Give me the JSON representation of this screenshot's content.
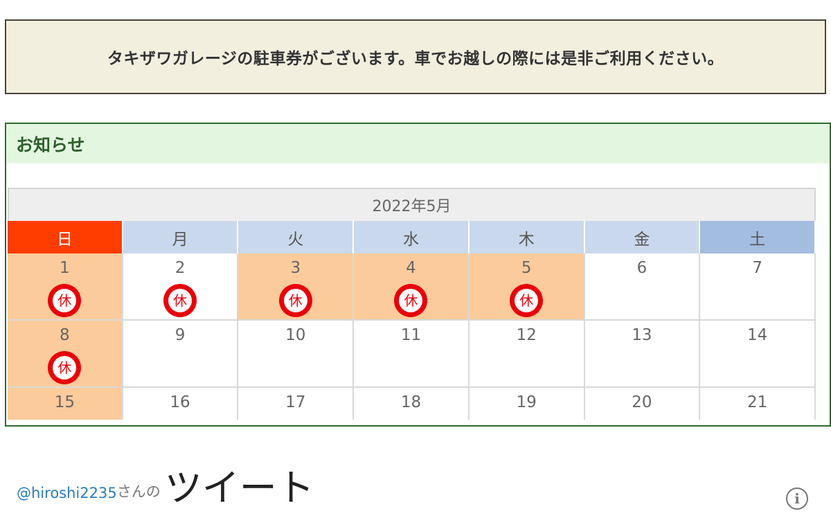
{
  "notice": {
    "text": "タキザワガレージの駐車券がございます。車でお越しの際には是非ご利用ください。"
  },
  "news": {
    "heading": "お知らせ",
    "calendar": {
      "title": "2022年5月",
      "weekdays": [
        "日",
        "月",
        "火",
        "水",
        "木",
        "金",
        "土"
      ],
      "closed_mark": "休",
      "weeks": [
        [
          {
            "day": "1",
            "holiday": true,
            "closed": true
          },
          {
            "day": "2",
            "holiday": false,
            "closed": true
          },
          {
            "day": "3",
            "holiday": true,
            "closed": true
          },
          {
            "day": "4",
            "holiday": true,
            "closed": true
          },
          {
            "day": "5",
            "holiday": true,
            "closed": true
          },
          {
            "day": "6",
            "holiday": false,
            "closed": false
          },
          {
            "day": "7",
            "holiday": false,
            "closed": false
          }
        ],
        [
          {
            "day": "8",
            "holiday": true,
            "closed": true
          },
          {
            "day": "9",
            "holiday": false,
            "closed": false
          },
          {
            "day": "10",
            "holiday": false,
            "closed": false
          },
          {
            "day": "11",
            "holiday": false,
            "closed": false
          },
          {
            "day": "12",
            "holiday": false,
            "closed": false
          },
          {
            "day": "13",
            "holiday": false,
            "closed": false
          },
          {
            "day": "14",
            "holiday": false,
            "closed": false
          }
        ],
        [
          {
            "day": "15",
            "holiday": true,
            "closed": false
          },
          {
            "day": "16",
            "holiday": false,
            "closed": false
          },
          {
            "day": "17",
            "holiday": false,
            "closed": false
          },
          {
            "day": "18",
            "holiday": false,
            "closed": false
          },
          {
            "day": "19",
            "holiday": false,
            "closed": false
          },
          {
            "day": "20",
            "holiday": false,
            "closed": false
          },
          {
            "day": "21",
            "holiday": false,
            "closed": false
          }
        ]
      ],
      "colors": {
        "sunday_header": "#ff3d00",
        "weekday_header": "#c9d8ec",
        "saturday_header": "#a2bde0",
        "holiday_cell": "#fccb9b",
        "closed_mark": "#e8000a"
      }
    }
  },
  "tweets": {
    "user": "@hiroshi2235",
    "suffix": "さんの",
    "title": "ツイート",
    "info_icon": "info-icon"
  }
}
